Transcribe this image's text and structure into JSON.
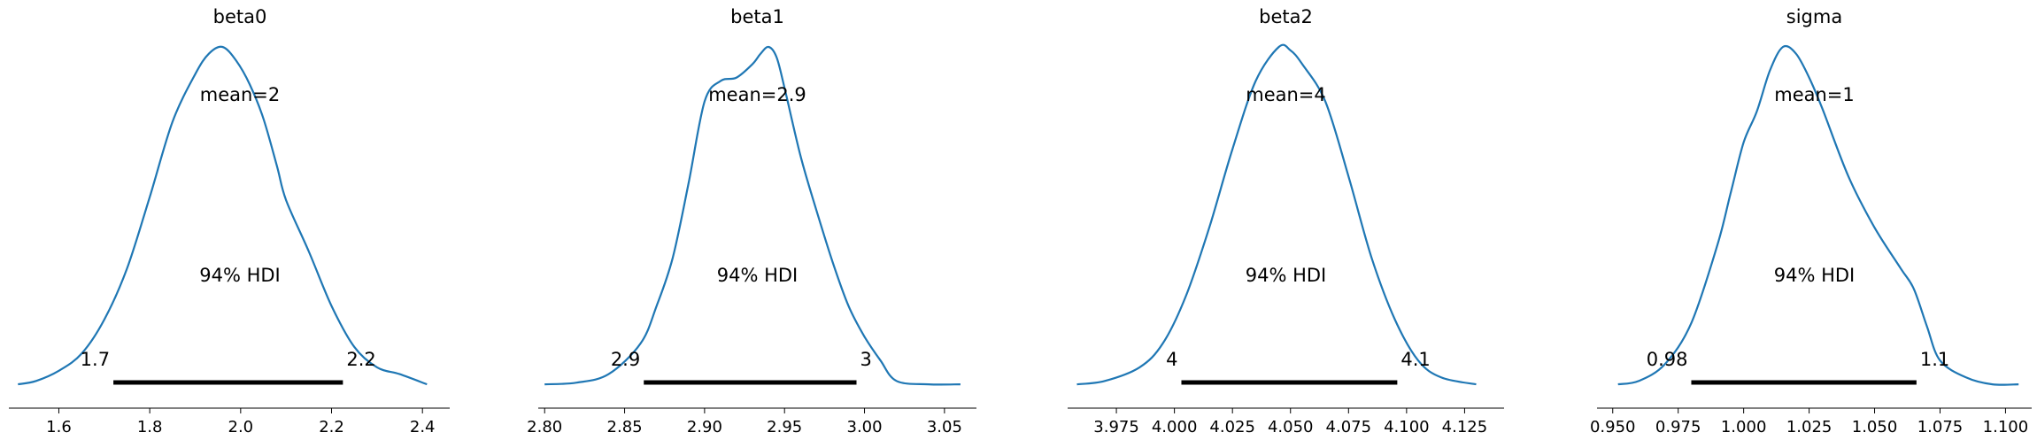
{
  "chart_data": [
    {
      "type": "area",
      "title": "beta0",
      "mean_label": "mean=2",
      "hdi_prob_label": "94% HDI",
      "hdi": [
        1.72,
        2.225
      ],
      "hdi_labels": [
        "1.7",
        "2.2"
      ],
      "xlim": [
        1.49,
        2.46
      ],
      "xticks": [
        1.6,
        1.8,
        2.0,
        2.2,
        2.4
      ],
      "xtick_labels": [
        "1.6",
        "1.8",
        "2.0",
        "2.2",
        "2.4"
      ],
      "density": {
        "x": [
          1.51,
          1.55,
          1.6,
          1.65,
          1.7,
          1.75,
          1.8,
          1.85,
          1.9,
          1.93,
          1.96,
          1.99,
          2.02,
          2.05,
          2.08,
          2.1,
          2.15,
          2.2,
          2.25,
          2.3,
          2.35,
          2.41
        ],
        "y": [
          0.01,
          0.02,
          0.05,
          0.1,
          0.2,
          0.35,
          0.56,
          0.78,
          0.92,
          0.98,
          1.0,
          0.96,
          0.89,
          0.79,
          0.65,
          0.55,
          0.4,
          0.24,
          0.12,
          0.06,
          0.04,
          0.01
        ]
      }
    },
    {
      "type": "area",
      "title": "beta1",
      "mean_label": "mean=2.9",
      "hdi_prob_label": "94% HDI",
      "hdi": [
        2.862,
        2.995
      ],
      "hdi_labels": [
        "2.9",
        "3"
      ],
      "xlim": [
        2.796,
        3.07
      ],
      "xticks": [
        2.8,
        2.85,
        2.9,
        2.95,
        3.0,
        3.05
      ],
      "xtick_labels": [
        "2.80",
        "2.85",
        "2.90",
        "2.95",
        "3.00",
        "3.05"
      ],
      "density": {
        "x": [
          2.8,
          2.82,
          2.84,
          2.86,
          2.87,
          2.88,
          2.89,
          2.9,
          2.91,
          2.92,
          2.93,
          2.935,
          2.94,
          2.945,
          2.95,
          2.96,
          2.97,
          2.98,
          2.99,
          3.0,
          3.01,
          3.02,
          3.04,
          3.06
        ],
        "y": [
          0.01,
          0.015,
          0.04,
          0.13,
          0.24,
          0.38,
          0.6,
          0.84,
          0.9,
          0.91,
          0.95,
          0.98,
          1.0,
          0.97,
          0.88,
          0.68,
          0.52,
          0.37,
          0.24,
          0.15,
          0.08,
          0.02,
          0.01,
          0.01
        ]
      }
    },
    {
      "type": "area",
      "title": "beta2",
      "mean_label": "mean=4",
      "hdi_prob_label": "94% HDI",
      "hdi": [
        4.003,
        4.096
      ],
      "hdi_labels": [
        "4",
        "4.1"
      ],
      "xlim": [
        3.954,
        4.142
      ],
      "xticks": [
        3.975,
        4.0,
        4.025,
        4.05,
        4.075,
        4.1,
        4.125
      ],
      "xtick_labels": [
        "3.975",
        "4.000",
        "4.025",
        "4.050",
        "4.075",
        "4.100",
        "4.125"
      ],
      "density": {
        "x": [
          3.958,
          3.97,
          3.985,
          3.995,
          4.005,
          4.015,
          4.025,
          4.035,
          4.045,
          4.05,
          4.055,
          4.065,
          4.075,
          4.085,
          4.095,
          4.105,
          4.115,
          4.13
        ],
        "y": [
          0.01,
          0.02,
          0.06,
          0.13,
          0.27,
          0.47,
          0.7,
          0.9,
          1.0,
          0.99,
          0.95,
          0.84,
          0.62,
          0.38,
          0.2,
          0.08,
          0.03,
          0.01
        ]
      }
    },
    {
      "type": "area",
      "title": "sigma",
      "mean_label": "mean=1",
      "hdi_prob_label": "94% HDI",
      "hdi": [
        0.98,
        1.066
      ],
      "hdi_labels": [
        "0.98",
        "1.1"
      ],
      "xlim": [
        0.944,
        1.11
      ],
      "xticks": [
        0.95,
        0.975,
        1.0,
        1.025,
        1.05,
        1.075,
        1.1
      ],
      "xtick_labels": [
        "0.950",
        "0.975",
        "1.000",
        "1.025",
        "1.050",
        "1.075",
        "1.100"
      ],
      "density": {
        "x": [
          0.952,
          0.96,
          0.97,
          0.98,
          0.99,
          0.995,
          1.0,
          1.005,
          1.01,
          1.015,
          1.02,
          1.025,
          1.03,
          1.04,
          1.05,
          1.06,
          1.065,
          1.07,
          1.075,
          1.085,
          1.095,
          1.105
        ],
        "y": [
          0.01,
          0.02,
          0.07,
          0.19,
          0.42,
          0.57,
          0.72,
          0.81,
          0.93,
          1.0,
          0.98,
          0.91,
          0.82,
          0.62,
          0.47,
          0.35,
          0.29,
          0.18,
          0.08,
          0.03,
          0.01,
          0.01
        ]
      }
    }
  ]
}
